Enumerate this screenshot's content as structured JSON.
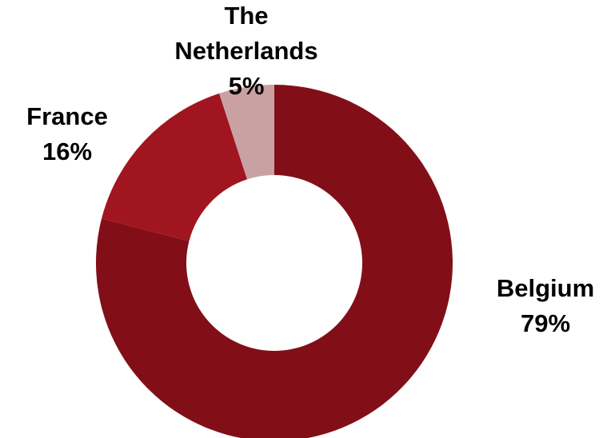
{
  "chart_data": {
    "type": "pie",
    "style": "donut",
    "slices": [
      {
        "label": "Belgium",
        "label_lines": [
          "Belgium"
        ],
        "value": 79,
        "value_label": "79%",
        "color": "#820F17"
      },
      {
        "label": "France",
        "label_lines": [
          "France"
        ],
        "value": 16,
        "value_label": "16%",
        "color": "#A0151F"
      },
      {
        "label": "The Netherlands",
        "label_lines": [
          "The",
          "Netherlands"
        ],
        "value": 5,
        "value_label": "5%",
        "color": "#C9A1A3"
      }
    ],
    "start": "top, clockwise",
    "legend": "none"
  }
}
